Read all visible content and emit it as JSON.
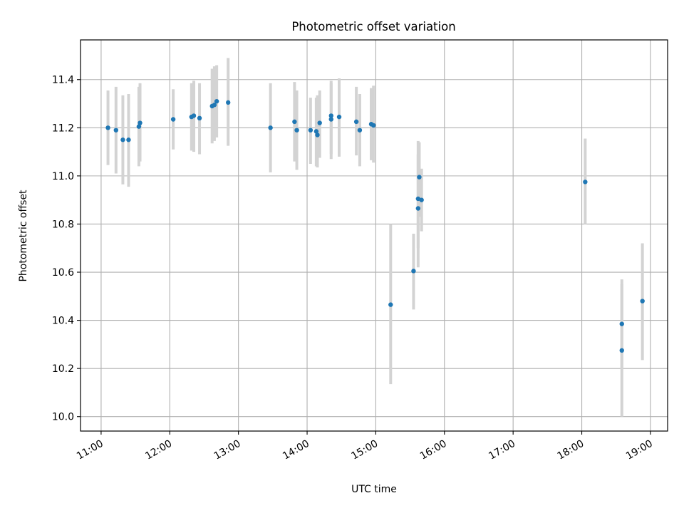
{
  "chart_data": {
    "type": "scatter",
    "title": "Photometric offset variation",
    "xlabel": "UTC time",
    "ylabel": "Photometric offset",
    "x_ticks": [
      "11:00",
      "12:00",
      "13:00",
      "14:00",
      "15:00",
      "16:00",
      "17:00",
      "18:00",
      "19:00"
    ],
    "y_ticks": [
      "10.0",
      "10.2",
      "10.4",
      "10.6",
      "10.8",
      "11.0",
      "11.2",
      "11.4"
    ],
    "xlim": [
      "10:42",
      "19:15"
    ],
    "ylim": [
      9.94,
      11.565
    ],
    "grid": true,
    "errorbar_color": "#d3d3d3",
    "point_color": "#1f77b4",
    "points": [
      {
        "x": "11:06",
        "y": 11.2,
        "yerr_low": 11.045,
        "yerr_high": 11.355
      },
      {
        "x": "11:13",
        "y": 11.19,
        "yerr_low": 11.01,
        "yerr_high": 11.37
      },
      {
        "x": "11:19",
        "y": 11.15,
        "yerr_low": 10.965,
        "yerr_high": 11.335
      },
      {
        "x": "11:24",
        "y": 11.15,
        "yerr_low": 10.955,
        "yerr_high": 11.34
      },
      {
        "x": "11:33",
        "y": 11.205,
        "yerr_low": 11.04,
        "yerr_high": 11.37
      },
      {
        "x": "11:34",
        "y": 11.22,
        "yerr_low": 11.06,
        "yerr_high": 11.385
      },
      {
        "x": "12:03",
        "y": 11.235,
        "yerr_low": 11.11,
        "yerr_high": 11.36
      },
      {
        "x": "12:19",
        "y": 11.245,
        "yerr_low": 11.105,
        "yerr_high": 11.385
      },
      {
        "x": "12:21",
        "y": 11.25,
        "yerr_low": 11.1,
        "yerr_high": 11.395
      },
      {
        "x": "12:26",
        "y": 11.24,
        "yerr_low": 11.09,
        "yerr_high": 11.385
      },
      {
        "x": "12:37",
        "y": 11.29,
        "yerr_low": 11.135,
        "yerr_high": 11.445
      },
      {
        "x": "12:39",
        "y": 11.295,
        "yerr_low": 11.145,
        "yerr_high": 11.455
      },
      {
        "x": "12:41",
        "y": 11.31,
        "yerr_low": 11.16,
        "yerr_high": 11.46
      },
      {
        "x": "12:51",
        "y": 11.305,
        "yerr_low": 11.125,
        "yerr_high": 11.49
      },
      {
        "x": "13:28",
        "y": 11.2,
        "yerr_low": 11.015,
        "yerr_high": 11.385
      },
      {
        "x": "13:49",
        "y": 11.225,
        "yerr_low": 11.06,
        "yerr_high": 11.39
      },
      {
        "x": "13:51",
        "y": 11.19,
        "yerr_low": 11.025,
        "yerr_high": 11.355
      },
      {
        "x": "14:03",
        "y": 11.19,
        "yerr_low": 11.05,
        "yerr_high": 11.325
      },
      {
        "x": "14:08",
        "y": 11.185,
        "yerr_low": 11.04,
        "yerr_high": 11.325
      },
      {
        "x": "14:09",
        "y": 11.17,
        "yerr_low": 11.035,
        "yerr_high": 11.335
      },
      {
        "x": "14:11",
        "y": 11.22,
        "yerr_low": 11.075,
        "yerr_high": 11.355
      },
      {
        "x": "14:21",
        "y": 11.25,
        "yerr_low": 11.07,
        "yerr_high": 11.395
      },
      {
        "x": "14:21",
        "y": 11.235,
        "yerr_low": 11.09,
        "yerr_high": 11.385
      },
      {
        "x": "14:28",
        "y": 11.245,
        "yerr_low": 11.08,
        "yerr_high": 11.405
      },
      {
        "x": "14:43",
        "y": 11.225,
        "yerr_low": 11.085,
        "yerr_high": 11.37
      },
      {
        "x": "14:46",
        "y": 11.19,
        "yerr_low": 11.04,
        "yerr_high": 11.34
      },
      {
        "x": "14:56",
        "y": 11.215,
        "yerr_low": 11.065,
        "yerr_high": 11.365
      },
      {
        "x": "14:58",
        "y": 11.21,
        "yerr_low": 11.055,
        "yerr_high": 11.375
      },
      {
        "x": "15:13",
        "y": 10.465,
        "yerr_low": 10.135,
        "yerr_high": 10.8
      },
      {
        "x": "15:33",
        "y": 10.605,
        "yerr_low": 10.445,
        "yerr_high": 10.76
      },
      {
        "x": "15:37",
        "y": 10.905,
        "yerr_low": 10.7,
        "yerr_high": 11.145
      },
      {
        "x": "15:37",
        "y": 10.865,
        "yerr_low": 10.62,
        "yerr_high": 11.09
      },
      {
        "x": "15:38",
        "y": 10.995,
        "yerr_low": 10.83,
        "yerr_high": 11.14
      },
      {
        "x": "15:40",
        "y": 10.9,
        "yerr_low": 10.77,
        "yerr_high": 11.03
      },
      {
        "x": "18:03",
        "y": 10.975,
        "yerr_low": 10.8,
        "yerr_high": 11.155
      },
      {
        "x": "18:35",
        "y": 10.385,
        "yerr_low": 10.2,
        "yerr_high": 10.57
      },
      {
        "x": "18:35",
        "y": 10.275,
        "yerr_low": 10.0,
        "yerr_high": 10.55
      },
      {
        "x": "18:53",
        "y": 10.48,
        "yerr_low": 10.235,
        "yerr_high": 10.72
      }
    ]
  }
}
